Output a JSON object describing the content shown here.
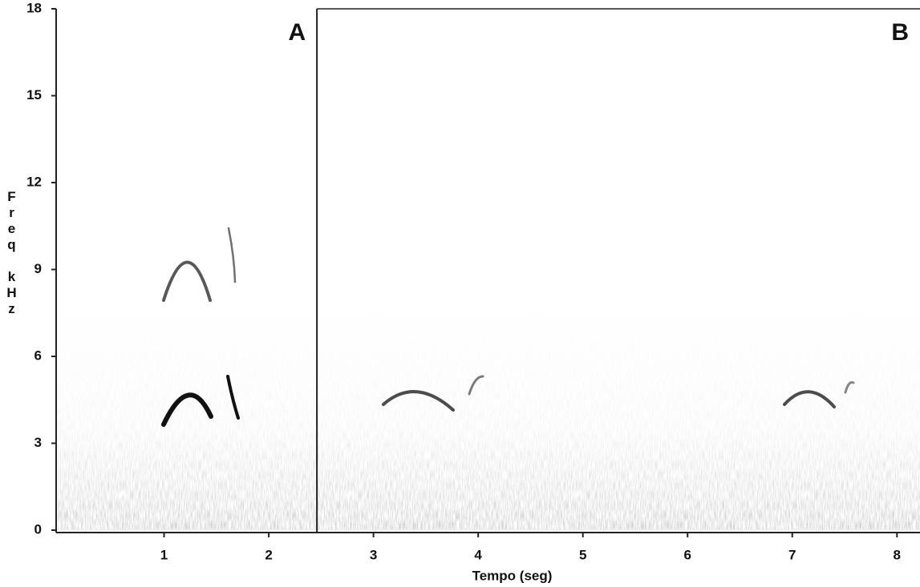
{
  "chart_data": {
    "type": "spectrogram",
    "x_label": "Tempo (seg)",
    "y_label": "Freq kHz",
    "xlim": [
      0,
      8.22
    ],
    "ylim": [
      0,
      18
    ],
    "xticks": [
      1,
      2,
      3,
      4,
      5,
      6,
      7,
      8
    ],
    "yticks": [
      0,
      3,
      6,
      9,
      12,
      15,
      18
    ],
    "panels": [
      {
        "label": "A",
        "xlim": [
          0,
          2.46
        ]
      },
      {
        "label": "B",
        "xlim": [
          2.46,
          8.22
        ]
      }
    ]
  }
}
